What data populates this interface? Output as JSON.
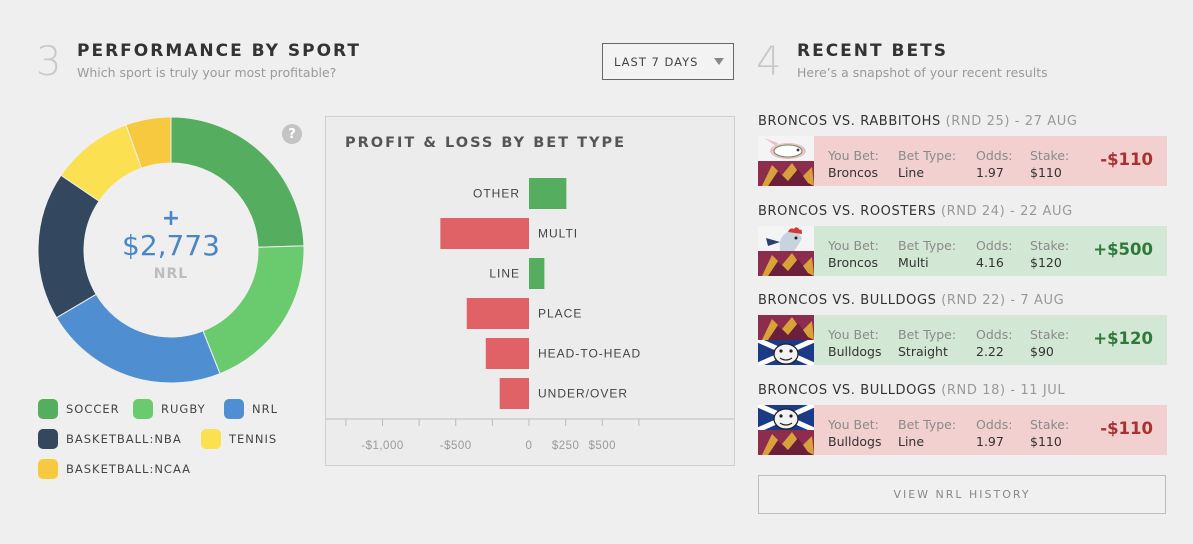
{
  "performance": {
    "number": "3",
    "title": "PERFORMANCE BY SPORT",
    "subtitle": "Which sport is truly your most profitable?",
    "period_dropdown": "LAST 7 DAYS",
    "help_icon": "?",
    "donut": {
      "plus": "+",
      "amount": "$2,773",
      "label": "NRL",
      "segments": [
        {
          "name": "SOCCER",
          "fraction": 0.245,
          "color": "#55ad5f"
        },
        {
          "name": "RUGBY",
          "fraction": 0.195,
          "color": "#6acb6e"
        },
        {
          "name": "NRL",
          "fraction": 0.225,
          "color": "#4f8fd1"
        },
        {
          "name": "BASKETBALL:NBA",
          "fraction": 0.18,
          "color": "#33475e"
        },
        {
          "name": "TENNIS",
          "fraction": 0.1,
          "color": "#fbe151"
        },
        {
          "name": "BASKETBALL:NCAA",
          "fraction": 0.055,
          "color": "#f7c93f"
        }
      ]
    },
    "legend": [
      {
        "label": "SOCCER",
        "color": "#55ad5f"
      },
      {
        "label": "RUGBY",
        "color": "#6acb6e"
      },
      {
        "label": "NRL",
        "color": "#4f8fd1"
      },
      {
        "label": "BASKETBALL:NBA",
        "color": "#33475e"
      },
      {
        "label": "TENNIS",
        "color": "#fbe151"
      },
      {
        "label": "BASKETBALL:NCAA",
        "color": "#f7c93f"
      }
    ]
  },
  "chart_data": {
    "type": "bar",
    "orientation": "horizontal",
    "title": "PROFIT & LOSS BY BET TYPE",
    "categories": [
      "OTHER",
      "MULTI",
      "LINE",
      "PLACE",
      "HEAD-TO-HEAD",
      "UNDER/OVER"
    ],
    "values": [
      255,
      -605,
      105,
      -425,
      -295,
      -200
    ],
    "xlim": [
      -1200,
      650
    ],
    "x_ticks": [
      -1000,
      -500,
      0,
      250,
      500
    ],
    "x_tick_labels": [
      "-$1,000",
      "-$500",
      "0",
      "$250",
      "$500"
    ],
    "positive_color": "#55ad5f",
    "negative_color": "#e06266"
  },
  "recent_bets": {
    "number": "4",
    "title": "RECENT BETS",
    "subtitle": "Here’s a snapshot of your recent results",
    "labels": {
      "you_bet": "You Bet:",
      "bet_type": "Bet Type:",
      "odds": "Odds:",
      "stake": "Stake:"
    },
    "bets": [
      {
        "match": "BRONCOS VS. RABBITOHS",
        "meta": "(RND 25) - 27 AUG",
        "you_bet": "Broncos",
        "bet_type": "Line",
        "odds": "1.97",
        "stake": "$110",
        "result": "-$110",
        "outcome": "loss",
        "logos": [
          "rabbit-logo",
          "bronco-logo"
        ]
      },
      {
        "match": "BRONCOS VS. ROOSTERS",
        "meta": "(RND 24) - 22 AUG",
        "you_bet": "Broncos",
        "bet_type": "Multi",
        "odds": "4.16",
        "stake": "$120",
        "result": "+$500",
        "outcome": "win",
        "logos": [
          "rooster-logo",
          "bronco-logo"
        ]
      },
      {
        "match": "BRONCOS VS. BULLDOGS",
        "meta": "(RND 22) - 7 AUG",
        "you_bet": "Bulldogs",
        "bet_type": "Straight",
        "odds": "2.22",
        "stake": "$90",
        "result": "+$120",
        "outcome": "win",
        "logos": [
          "bronco-logo",
          "bulldog-logo"
        ]
      },
      {
        "match": "BRONCOS VS. BULLDOGS",
        "meta": "(RND 18) - 11 JUL",
        "you_bet": "Bulldogs",
        "bet_type": "Line",
        "odds": "1.97",
        "stake": "$110",
        "result": "-$110",
        "outcome": "loss",
        "logos": [
          "bulldog-logo",
          "bronco-logo"
        ]
      }
    ],
    "history_button": "VIEW NRL HISTORY"
  }
}
